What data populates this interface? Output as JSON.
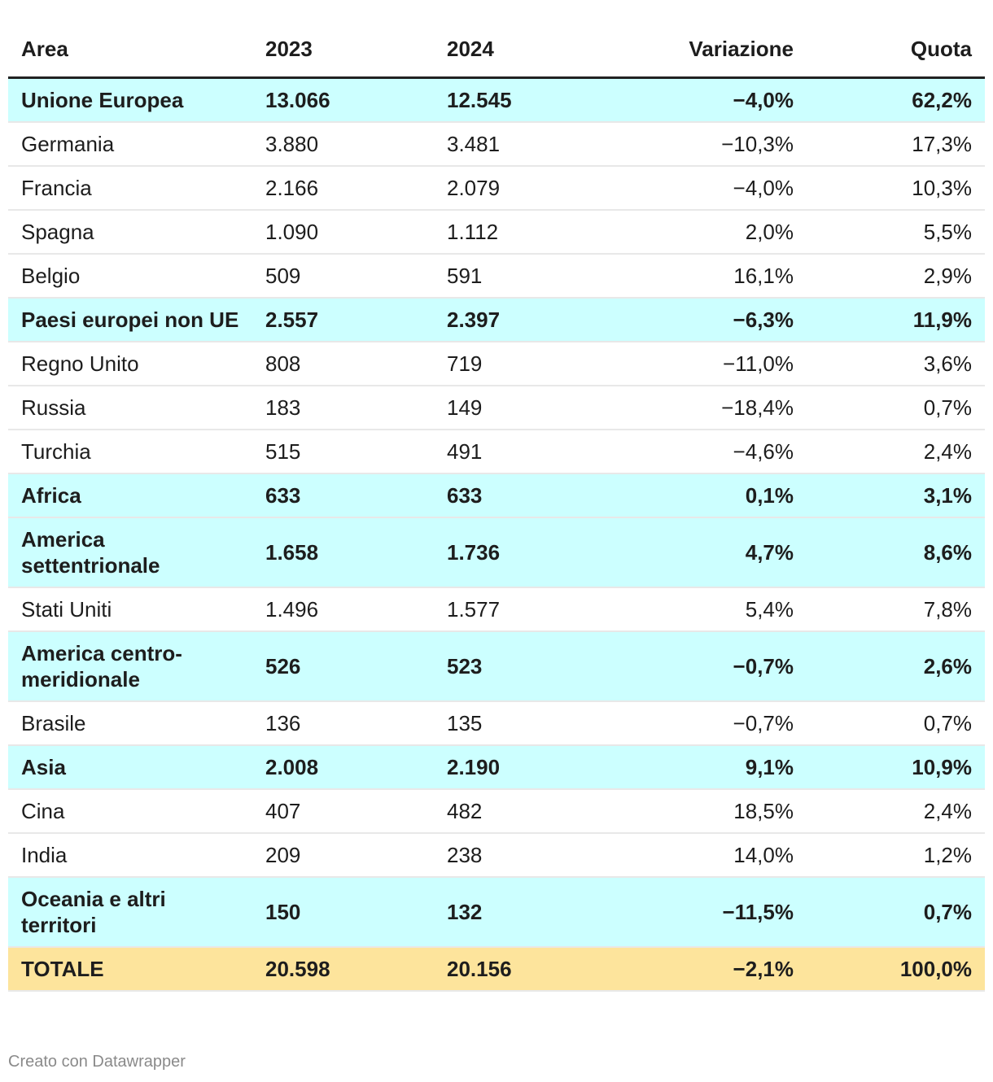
{
  "table": {
    "headers": [
      "Area",
      "2023",
      "2024",
      "Variazione",
      "Quota"
    ],
    "rows": [
      {
        "cells": [
          "Unione Europea",
          "13.066",
          "12.545",
          "−4,0%",
          "62,2%"
        ],
        "background": "#ccffff"
      },
      {
        "cells": [
          "Germania",
          "3.880",
          "3.481",
          "−10,3%",
          "17,3%"
        ]
      },
      {
        "cells": [
          "Francia",
          "2.166",
          "2.079",
          "−4,0%",
          "10,3%"
        ]
      },
      {
        "cells": [
          "Spagna",
          "1.090",
          "1.112",
          "2,0%",
          "5,5%"
        ]
      },
      {
        "cells": [
          "Belgio",
          "509",
          "591",
          "16,1%",
          "2,9%"
        ]
      },
      {
        "cells": [
          "Paesi europei non UE",
          "2.557",
          "2.397",
          "−6,3%",
          "11,9%"
        ],
        "background": "#ccffff"
      },
      {
        "cells": [
          "Regno Unito",
          "808",
          "719",
          "−11,0%",
          "3,6%"
        ]
      },
      {
        "cells": [
          "Russia",
          "183",
          "149",
          "−18,4%",
          "0,7%"
        ]
      },
      {
        "cells": [
          "Turchia",
          "515",
          "491",
          "−4,6%",
          "2,4%"
        ]
      },
      {
        "cells": [
          "Africa",
          "633",
          "633",
          "0,1%",
          "3,1%"
        ],
        "background": "#ccffff"
      },
      {
        "cells": [
          "America settentrionale",
          "1.658",
          "1.736",
          "4,7%",
          "8,6%"
        ],
        "background": "#ccffff"
      },
      {
        "cells": [
          "Stati Uniti",
          "1.496",
          "1.577",
          "5,4%",
          "7,8%"
        ]
      },
      {
        "cells": [
          "America centro-meridionale",
          "526",
          "523",
          "−0,7%",
          "2,6%"
        ],
        "background": "#ccffff"
      },
      {
        "cells": [
          "Brasile",
          "136",
          "135",
          "−0,7%",
          "0,7%"
        ]
      },
      {
        "cells": [
          "Asia",
          "2.008",
          "2.190",
          "9,1%",
          "10,9%"
        ],
        "background": "#ccffff"
      },
      {
        "cells": [
          "Cina",
          "407",
          "482",
          "18,5%",
          "2,4%"
        ]
      },
      {
        "cells": [
          "India",
          "209",
          "238",
          "14,0%",
          "1,2%"
        ]
      },
      {
        "cells": [
          "Oceania e altri territori",
          "150",
          "132",
          "−11,5%",
          "0,7%"
        ],
        "background": "#ccffff"
      },
      {
        "cells": [
          "TOTALE",
          "20.598",
          "20.156",
          "−2,1%",
          "100,0%"
        ],
        "background": "#fde49c"
      }
    ]
  },
  "footer": "Creato con Datawrapper"
}
